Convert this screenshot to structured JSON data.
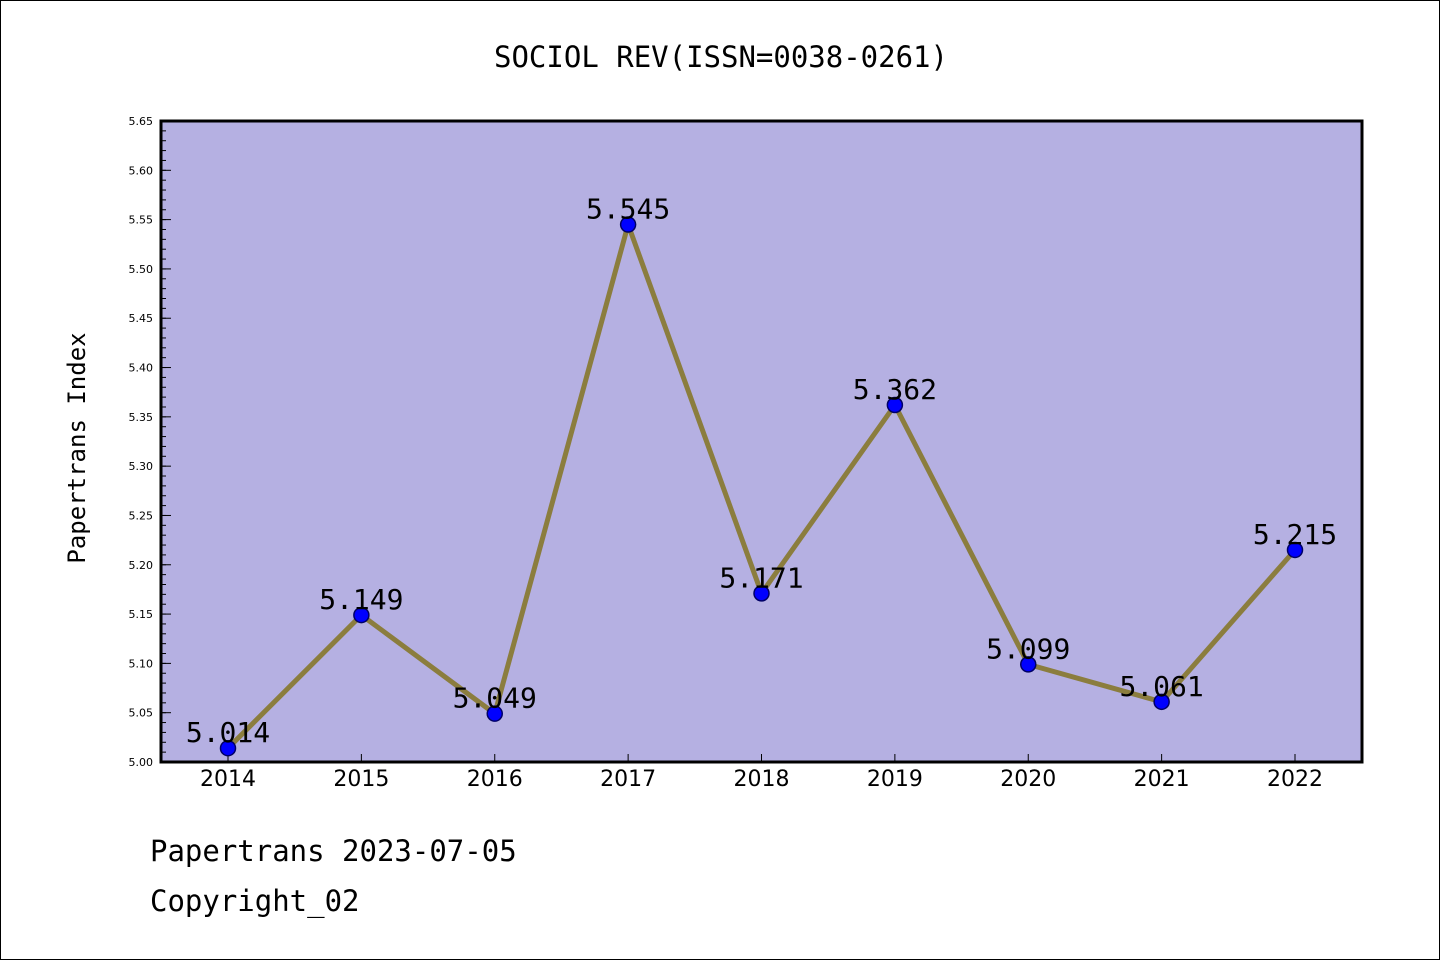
{
  "chart_data": {
    "type": "line",
    "title": "SOCIOL REV(ISSN=0038-0261)",
    "xlabel": "",
    "ylabel": "Papertrans Index",
    "categories": [
      "2014",
      "2015",
      "2016",
      "2017",
      "2018",
      "2019",
      "2020",
      "2021",
      "2022"
    ],
    "values": [
      5.014,
      5.149,
      5.049,
      5.545,
      5.171,
      5.362,
      5.099,
      5.061,
      5.215
    ],
    "data_labels": [
      "5.014",
      "5.149",
      "5.049",
      "5.545",
      "5.171",
      "5.362",
      "5.099",
      "5.061",
      "5.215"
    ],
    "ylim": [
      5.0,
      5.65
    ],
    "yticks": [
      "5.00",
      "5.05",
      "5.10",
      "5.15",
      "5.20",
      "5.25",
      "5.30",
      "5.35",
      "5.40",
      "5.45",
      "5.50",
      "5.55",
      "5.60",
      "5.65"
    ],
    "grid": false,
    "legend": "none",
    "colors": {
      "plot_background": "#b5b0e2",
      "line": "#8b7d3e",
      "marker_fill": "#0000ff",
      "marker_stroke": "#000066"
    }
  },
  "footer": {
    "date_text": "Papertrans 2023-07-05",
    "copyright_text": "Copyright_02"
  }
}
